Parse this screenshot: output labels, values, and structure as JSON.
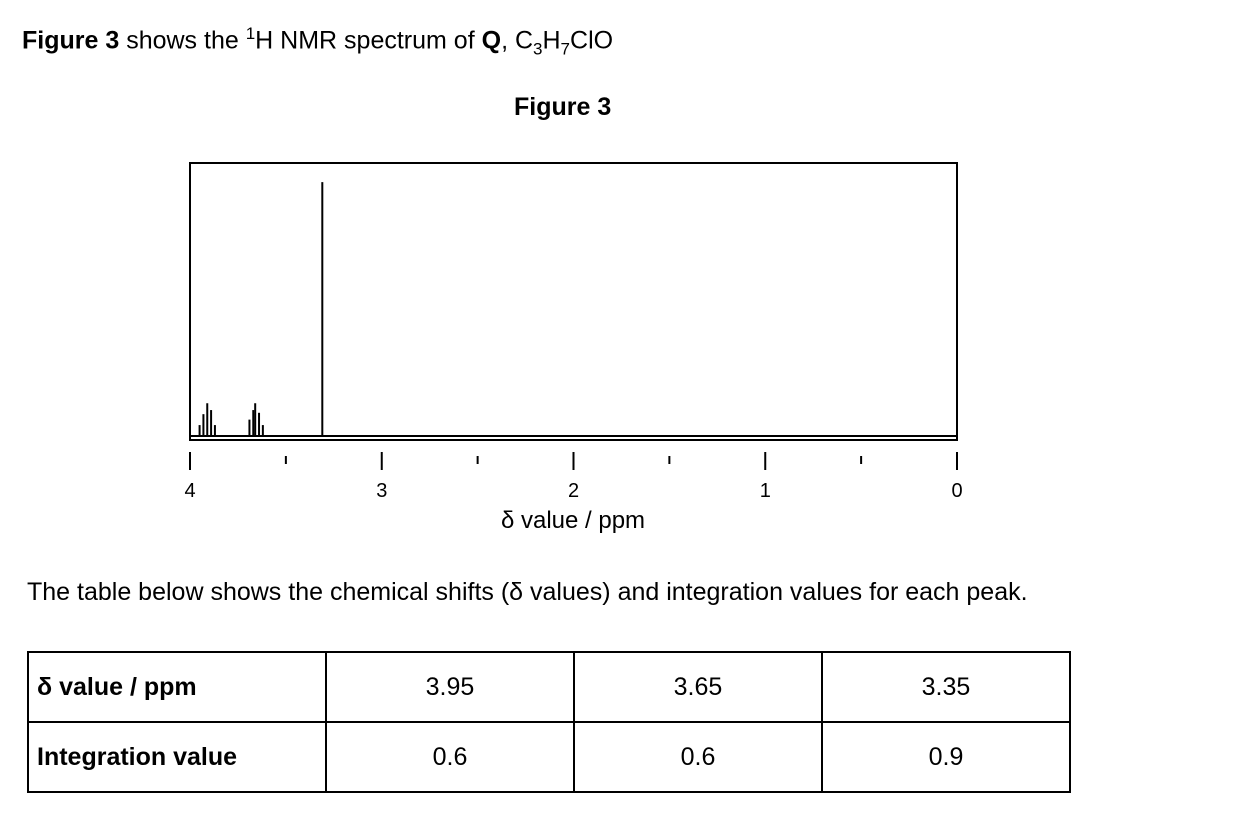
{
  "header": {
    "parts": [
      "Figure 3",
      " shows the ",
      "1",
      "H NMR spectrum of ",
      "Q",
      ", C",
      "3",
      "H",
      "7",
      "ClO"
    ]
  },
  "figure": {
    "title": "Figure 3",
    "chart_data": {
      "type": "spectrum",
      "xlabel": "δ value / ppm",
      "xlim": [
        4,
        0
      ],
      "ylim": [
        0,
        1
      ],
      "xticks": [
        4,
        3,
        2,
        1,
        0
      ],
      "xminorticks": [
        3.5,
        2.5,
        1.5,
        0.5
      ],
      "color": "#000000",
      "x": [
        3.95,
        3.93,
        3.91,
        3.89,
        3.87,
        3.69,
        3.67,
        3.66,
        3.64,
        3.62,
        3.31
      ],
      "values": [
        0.04,
        0.08,
        0.12,
        0.095,
        0.04,
        0.06,
        0.095,
        0.12,
        0.085,
        0.04,
        0.93
      ]
    }
  },
  "paragraph": "The table below shows the chemical shifts (δ values) and integration values for each peak.",
  "table": {
    "rows": [
      [
        "δ value / ppm",
        3.95,
        3.65,
        3.35
      ],
      [
        "Integration value",
        0.6,
        0.6,
        0.9
      ]
    ]
  }
}
